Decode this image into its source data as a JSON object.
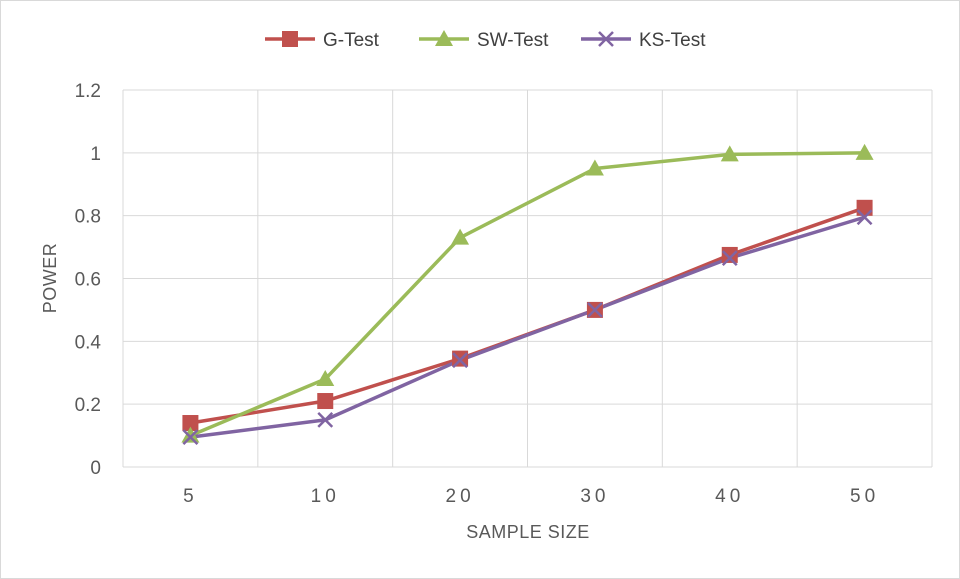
{
  "chart_data": {
    "type": "line",
    "categories": [
      "5",
      "10",
      "20",
      "30",
      "40",
      "50"
    ],
    "xlabel": "SAMPLE  SIZE",
    "ylabel": "POWER",
    "ylim": [
      0,
      1.2
    ],
    "yticks": [
      "0",
      "0.2",
      "0.4",
      "0.6",
      "0.8",
      "1",
      "1.2"
    ],
    "grid": true,
    "legend_position": "top",
    "series": [
      {
        "name": "G-Test",
        "color": "#c0504d",
        "marker": "square",
        "values": [
          0.14,
          0.21,
          0.345,
          0.5,
          0.675,
          0.825
        ]
      },
      {
        "name": "SW-Test",
        "color": "#9bbb59",
        "marker": "triangle",
        "values": [
          0.1,
          0.28,
          0.73,
          0.95,
          0.995,
          1.0
        ]
      },
      {
        "name": "KS-Test",
        "color": "#8064a2",
        "marker": "x",
        "values": [
          0.095,
          0.15,
          0.34,
          0.5,
          0.665,
          0.795
        ]
      }
    ]
  }
}
